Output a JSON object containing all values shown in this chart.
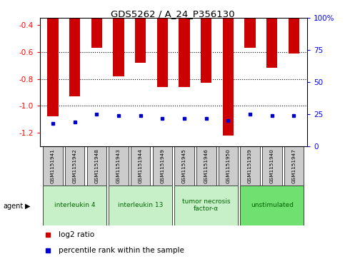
{
  "title": "GDS5262 / A_24_P356130",
  "samples": [
    "GSM1151941",
    "GSM1151942",
    "GSM1151948",
    "GSM1151943",
    "GSM1151944",
    "GSM1151949",
    "GSM1151945",
    "GSM1151946",
    "GSM1151950",
    "GSM1151939",
    "GSM1151940",
    "GSM1151947"
  ],
  "log2_ratio": [
    -1.08,
    -0.93,
    -0.57,
    -0.78,
    -0.68,
    -0.86,
    -0.86,
    -0.83,
    -1.22,
    -0.57,
    -0.72,
    -0.61
  ],
  "percentile_rank": [
    18,
    19,
    25,
    24,
    24,
    22,
    22,
    22,
    20,
    25,
    24,
    24
  ],
  "agents": [
    {
      "label": "interleukin 4",
      "indices": [
        0,
        1,
        2
      ],
      "color": "#c8f0c8"
    },
    {
      "label": "interleukin 13",
      "indices": [
        3,
        4,
        5
      ],
      "color": "#c8f0c8"
    },
    {
      "label": "tumor necrosis\nfactor-α",
      "indices": [
        6,
        7,
        8
      ],
      "color": "#c8f0c8"
    },
    {
      "label": "unstimulated",
      "indices": [
        9,
        10,
        11
      ],
      "color": "#70e070"
    }
  ],
  "ylim_left": [
    -1.3,
    -0.35
  ],
  "ylim_right": [
    0,
    100
  ],
  "yticks_left": [
    -1.2,
    -1.0,
    -0.8,
    -0.6,
    -0.4
  ],
  "yticks_right": [
    0,
    25,
    50,
    75,
    100
  ],
  "bar_color": "#cc0000",
  "marker_color": "#0000cc",
  "bar_width": 0.5,
  "background_color": "#ffffff",
  "grid_lines": [
    -1.0,
    -0.8,
    -0.6
  ],
  "legend_items": [
    "log2 ratio",
    "percentile rank within the sample"
  ]
}
